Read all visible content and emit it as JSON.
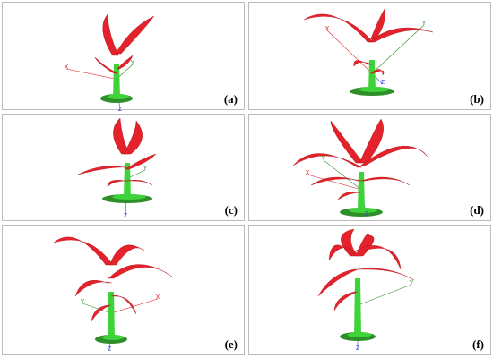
{
  "panels": [
    {
      "label": "(a)",
      "axes": [
        "X",
        "Y",
        "Z"
      ]
    },
    {
      "label": "(b)",
      "axes": [
        "X",
        "Y",
        "Z"
      ]
    },
    {
      "label": "(c)",
      "axes": [
        "Y",
        "Z"
      ]
    },
    {
      "label": "(d)",
      "axes": [
        "Y",
        "X",
        "Z"
      ]
    },
    {
      "label": "(e)",
      "axes": [
        "X",
        "Y",
        "Z"
      ]
    },
    {
      "label": "(f)",
      "axes": [
        "Y",
        "Z"
      ]
    }
  ]
}
